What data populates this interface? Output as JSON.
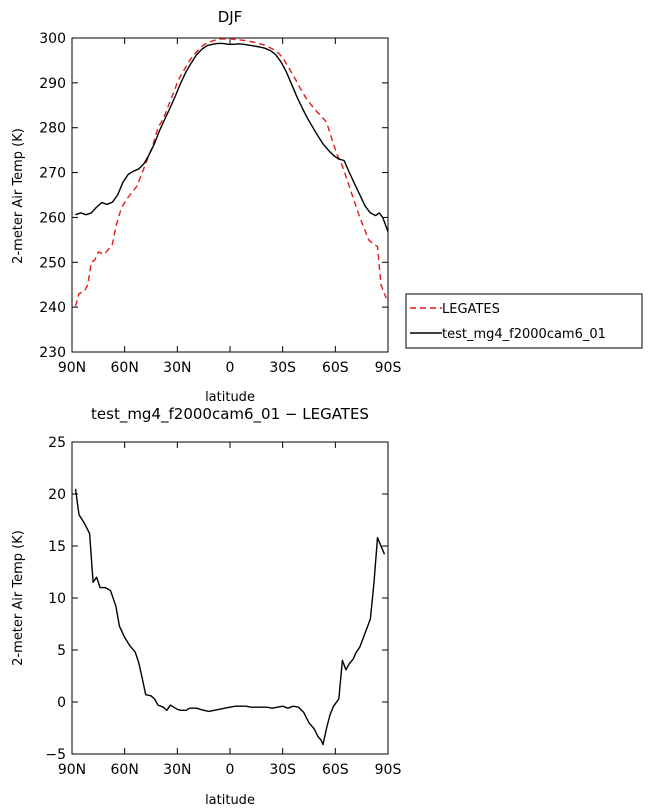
{
  "chart_data": [
    {
      "type": "line",
      "title": "DJF",
      "xlabel": "latitude",
      "ylabel": "2-meter Air Temp (K)",
      "xlim": [
        90,
        -90
      ],
      "ylim": [
        230,
        300
      ],
      "xticks": [
        90,
        60,
        30,
        0,
        -30,
        -60,
        -90
      ],
      "xtick_labels": [
        "90N",
        "60N",
        "30N",
        "0",
        "30S",
        "60S",
        "90S"
      ],
      "yticks": [
        230,
        240,
        250,
        260,
        270,
        280,
        290,
        300
      ],
      "ytick_labels": [
        "230",
        "240",
        "250",
        "260",
        "270",
        "280",
        "290",
        "300"
      ],
      "grid": false,
      "legend_position": "right",
      "series": [
        {
          "name": "LEGATES",
          "color": "#e41a1c",
          "dash": "dashed",
          "points": [
            [
              88,
              240.2
            ],
            [
              86,
              243
            ],
            [
              83,
              243.5
            ],
            [
              81,
              245
            ],
            [
              79,
              250
            ],
            [
              77,
              250.5
            ],
            [
              75,
              252.3
            ],
            [
              72,
              251.8
            ],
            [
              70,
              252.5
            ],
            [
              67,
              254
            ],
            [
              65,
              258
            ],
            [
              62,
              262
            ],
            [
              59,
              264
            ],
            [
              56,
              265.5
            ],
            [
              53,
              267
            ],
            [
              50,
              270
            ],
            [
              47,
              273
            ],
            [
              44,
              276
            ],
            [
              41,
              280
            ],
            [
              38,
              282
            ],
            [
              35,
              285
            ],
            [
              32,
              288
            ],
            [
              29,
              291
            ],
            [
              26,
              293
            ],
            [
              23,
              295
            ],
            [
              20,
              296.5
            ],
            [
              17,
              297.8
            ],
            [
              14,
              298.7
            ],
            [
              11,
              299.2
            ],
            [
              8,
              299.6
            ],
            [
              5,
              299.8
            ],
            [
              2,
              299.8
            ],
            [
              -1,
              299.8
            ],
            [
              -4,
              299.6
            ],
            [
              -7,
              299.5
            ],
            [
              -10,
              299.3
            ],
            [
              -13,
              299.1
            ],
            [
              -16,
              298.8
            ],
            [
              -19,
              298.5
            ],
            [
              -22,
              298
            ],
            [
              -25,
              297.4
            ],
            [
              -28,
              296.5
            ],
            [
              -31,
              295
            ],
            [
              -34,
              293
            ],
            [
              -37,
              291
            ],
            [
              -40,
              288.8
            ],
            [
              -43,
              286.8
            ],
            [
              -46,
              285.2
            ],
            [
              -49,
              283.8
            ],
            [
              -52,
              282.6
            ],
            [
              -55,
              281.2
            ],
            [
              -58,
              277.5
            ],
            [
              -61,
              274
            ],
            [
              -64,
              271.5
            ],
            [
              -67,
              268
            ],
            [
              -70,
              264.5
            ],
            [
              -73,
              261
            ],
            [
              -76,
              258
            ],
            [
              -79,
              255
            ],
            [
              -82,
              254
            ],
            [
              -84,
              253.5
            ],
            [
              -86,
              245
            ],
            [
              -89,
              242
            ]
          ]
        },
        {
          "name": "test_mg4_f2000cam6_01",
          "color": "#000000",
          "dash": "solid",
          "points": [
            [
              88,
              260.6
            ],
            [
              85,
              261
            ],
            [
              82,
              260.6
            ],
            [
              79,
              261
            ],
            [
              76,
              262.3
            ],
            [
              73,
              263.3
            ],
            [
              70,
              262.9
            ],
            [
              67,
              263.4
            ],
            [
              64,
              265
            ],
            [
              61,
              267.8
            ],
            [
              58,
              269.6
            ],
            [
              55,
              270.3
            ],
            [
              52,
              270.8
            ],
            [
              49,
              272
            ],
            [
              46,
              274
            ],
            [
              43,
              276.5
            ],
            [
              40,
              279.5
            ],
            [
              37,
              282
            ],
            [
              34,
              284.5
            ],
            [
              31,
              287.2
            ],
            [
              28,
              290
            ],
            [
              25,
              292.5
            ],
            [
              22,
              294.5
            ],
            [
              19,
              296.3
            ],
            [
              16,
              297.5
            ],
            [
              13,
              298.3
            ],
            [
              10,
              298.6
            ],
            [
              7,
              298.8
            ],
            [
              4,
              298.8
            ],
            [
              1,
              298.6
            ],
            [
              -2,
              298.6
            ],
            [
              -5,
              298.7
            ],
            [
              -8,
              298.6
            ],
            [
              -11,
              298.4
            ],
            [
              -14,
              298.2
            ],
            [
              -17,
              298
            ],
            [
              -20,
              297.7
            ],
            [
              -23,
              297.2
            ],
            [
              -26,
              296.3
            ],
            [
              -29,
              294.7
            ],
            [
              -32,
              292.5
            ],
            [
              -35,
              289.8
            ],
            [
              -38,
              287
            ],
            [
              -41,
              284.5
            ],
            [
              -44,
              282.2
            ],
            [
              -47,
              280.2
            ],
            [
              -50,
              278.2
            ],
            [
              -53,
              276.4
            ],
            [
              -56,
              275
            ],
            [
              -59,
              273.8
            ],
            [
              -62,
              273
            ],
            [
              -65,
              272.7
            ],
            [
              -68,
              270
            ],
            [
              -71,
              267.5
            ],
            [
              -74,
              265
            ],
            [
              -77,
              262.5
            ],
            [
              -80,
              261
            ],
            [
              -83,
              260.4
            ],
            [
              -85,
              261
            ],
            [
              -87,
              260
            ],
            [
              -90,
              256.8
            ]
          ]
        }
      ]
    },
    {
      "type": "line",
      "title": "test_mg4_f2000cam6_01 − LEGATES",
      "xlabel": "latitude",
      "ylabel": "2-meter Air Temp (K)",
      "xlim": [
        90,
        -90
      ],
      "ylim": [
        -5,
        25
      ],
      "xticks": [
        90,
        60,
        30,
        0,
        -30,
        -60,
        -90
      ],
      "xtick_labels": [
        "90N",
        "60N",
        "30N",
        "0",
        "30S",
        "60S",
        "90S"
      ],
      "yticks": [
        -5,
        0,
        5,
        10,
        15,
        20,
        25
      ],
      "ytick_labels": [
        "−5",
        "0",
        "5",
        "10",
        "15",
        "20",
        "25"
      ],
      "grid": false,
      "series": [
        {
          "color": "#000000",
          "dash": "solid",
          "points": [
            [
              88,
              20.5
            ],
            [
              86,
              18
            ],
            [
              83,
              17.2
            ],
            [
              80,
              16.2
            ],
            [
              78,
              11.5
            ],
            [
              76,
              12
            ],
            [
              74,
              11
            ],
            [
              71,
              11
            ],
            [
              68,
              10.7
            ],
            [
              65,
              9.2
            ],
            [
              63,
              7.3
            ],
            [
              60,
              6.2
            ],
            [
              57,
              5.4
            ],
            [
              54,
              4.8
            ],
            [
              52,
              3.8
            ],
            [
              50,
              2.3
            ],
            [
              48,
              0.7
            ],
            [
              45,
              0.6
            ],
            [
              43,
              0.3
            ],
            [
              41,
              -0.3
            ],
            [
              38,
              -0.5
            ],
            [
              36,
              -0.8
            ],
            [
              34,
              -0.3
            ],
            [
              32,
              -0.5
            ],
            [
              30,
              -0.7
            ],
            [
              28,
              -0.8
            ],
            [
              25,
              -0.8
            ],
            [
              23,
              -0.6
            ],
            [
              21,
              -0.6
            ],
            [
              19,
              -0.6
            ],
            [
              17,
              -0.7
            ],
            [
              15,
              -0.8
            ],
            [
              12,
              -0.9
            ],
            [
              9,
              -0.8
            ],
            [
              6,
              -0.7
            ],
            [
              3,
              -0.6
            ],
            [
              0,
              -0.5
            ],
            [
              -3,
              -0.4
            ],
            [
              -6,
              -0.4
            ],
            [
              -9,
              -0.4
            ],
            [
              -12,
              -0.5
            ],
            [
              -15,
              -0.5
            ],
            [
              -18,
              -0.5
            ],
            [
              -21,
              -0.5
            ],
            [
              -24,
              -0.6
            ],
            [
              -27,
              -0.5
            ],
            [
              -30,
              -0.4
            ],
            [
              -33,
              -0.6
            ],
            [
              -36,
              -0.4
            ],
            [
              -39,
              -0.5
            ],
            [
              -42,
              -1
            ],
            [
              -45,
              -2
            ],
            [
              -48,
              -2.6
            ],
            [
              -50,
              -3.3
            ],
            [
              -52,
              -3.7
            ],
            [
              -53,
              -4.1
            ],
            [
              -55,
              -2.5
            ],
            [
              -57,
              -1.2
            ],
            [
              -59,
              -0.4
            ],
            [
              -62,
              0.3
            ],
            [
              -64,
              4
            ],
            [
              -66,
              3.1
            ],
            [
              -68,
              3.7
            ],
            [
              -70,
              4.1
            ],
            [
              -72,
              4.8
            ],
            [
              -74,
              5.3
            ],
            [
              -76,
              6.2
            ],
            [
              -78,
              7.1
            ],
            [
              -80,
              8
            ],
            [
              -82,
              11.5
            ],
            [
              -84,
              15.8
            ],
            [
              -86,
              15
            ],
            [
              -88,
              14.2
            ]
          ]
        }
      ]
    }
  ]
}
